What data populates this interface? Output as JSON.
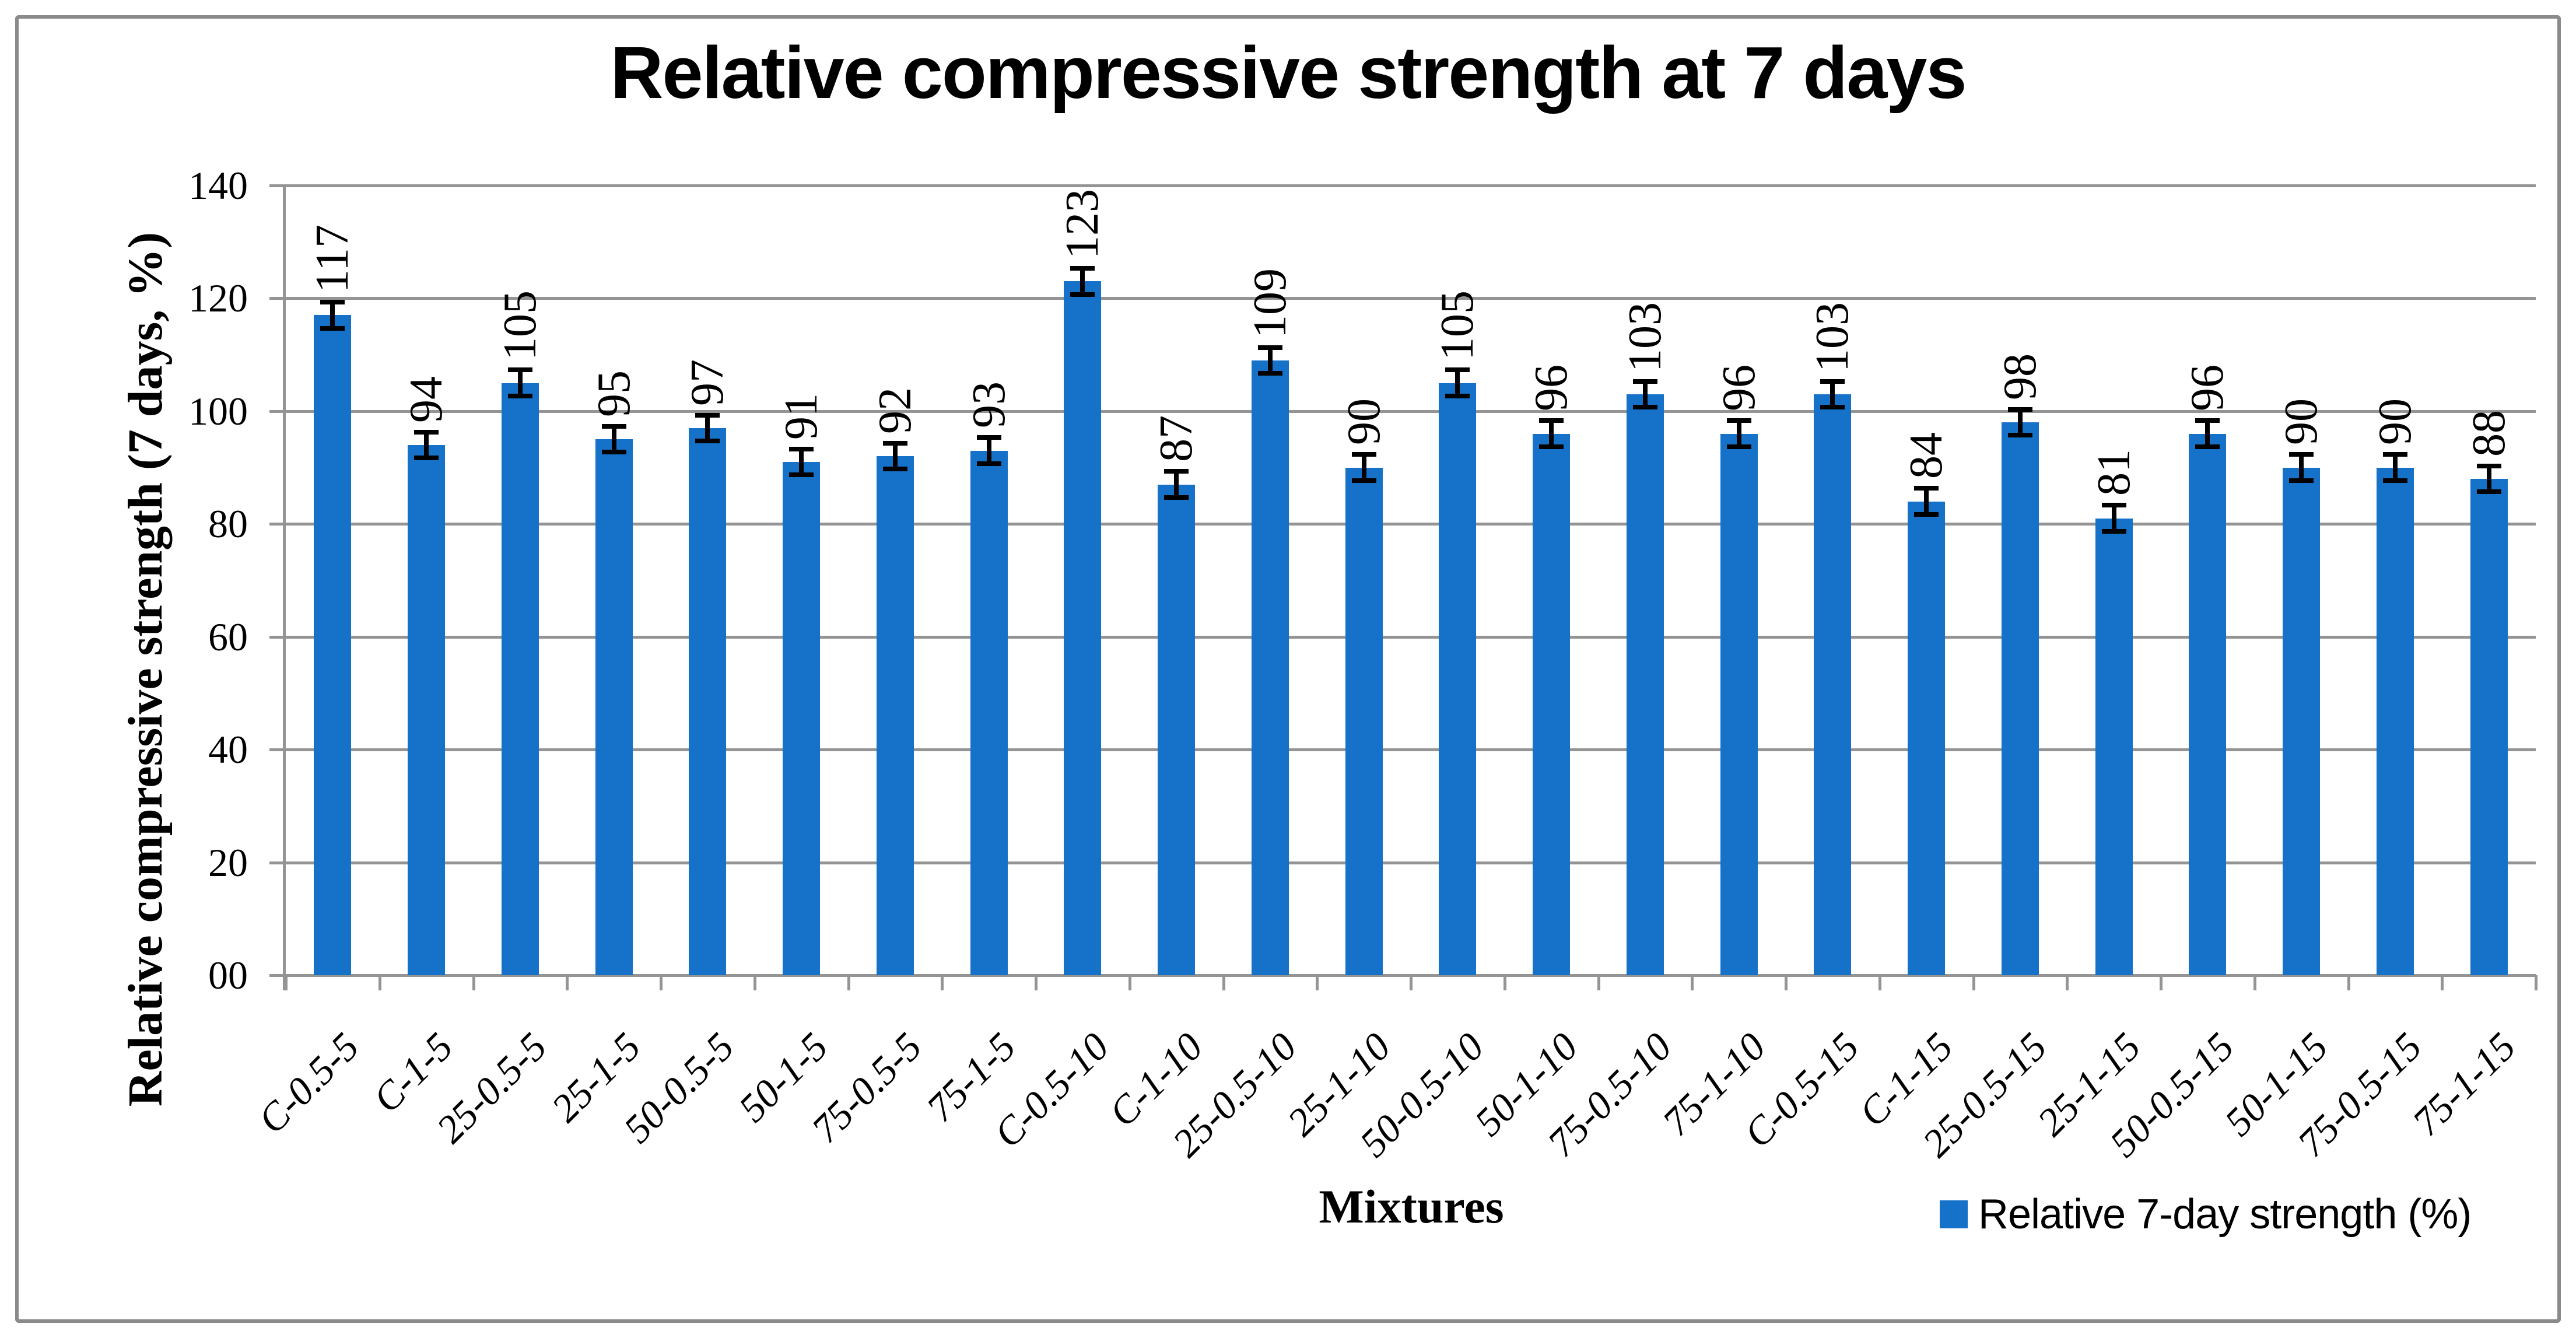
{
  "chart_data": {
    "type": "bar",
    "title": "Relative compressive strength at 7 days",
    "xlabel": "Mixtures",
    "ylabel": "Relative compressive strength (7 days, %)",
    "legend_label": "Relative 7-day strength (%)",
    "categories": [
      "C-0.5-5",
      "C-1-5",
      "25-0.5-5",
      "25-1-5",
      "50-0.5-5",
      "50-1-5",
      "75-0.5-5",
      "75-1-5",
      "C-0.5-10",
      "C-1-10",
      "25-0.5-10",
      "25-1-10",
      "50-0.5-10",
      "50-1-10",
      "75-0.5-10",
      "75-1-10",
      "C-0.5-15",
      "C-1-15",
      "25-0.5-15",
      "25-1-15",
      "50-0.5-15",
      "50-1-15",
      "75-0.5-15",
      "75-1-15"
    ],
    "values": [
      117,
      94,
      105,
      95,
      97,
      91,
      92,
      93,
      123,
      87,
      109,
      90,
      105,
      96,
      103,
      96,
      103,
      84,
      98,
      81,
      96,
      90,
      90,
      88
    ],
    "error_bar": 2.3,
    "ylim": [
      0,
      140
    ],
    "ytick_step": 20,
    "ytick_labels": [
      "00",
      "20",
      "40",
      "60",
      "80",
      "100",
      "120",
      "140"
    ],
    "grid": true,
    "legend_position": "bottom-right",
    "bar_color": "#1672c8",
    "gridline_color": "#949494",
    "error_bar_color": "#000000"
  }
}
